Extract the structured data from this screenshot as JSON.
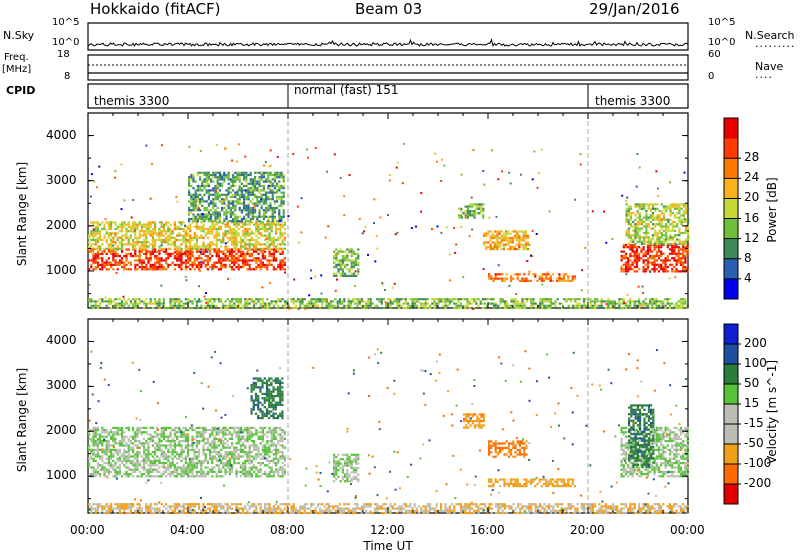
{
  "header": {
    "radar": "Hokkaido (fitACF)",
    "beam": "Beam 03",
    "date": "29/Jan/2016"
  },
  "nsky_panel": {
    "label": "N.Sky",
    "left_ticks": [
      "10^5",
      "10^0"
    ],
    "right_ticks": [
      "10^5",
      "10^0"
    ],
    "right_label": "N.Search"
  },
  "freq_panel": {
    "label_line1": "Freq.",
    "label_line2": "[MHz]",
    "left_ticks": [
      "18",
      "8"
    ],
    "right_ticks": [
      "60",
      "0"
    ],
    "right_label": "Nave"
  },
  "cpid_panel": {
    "label": "CPID",
    "segments": [
      {
        "start_hour": 0,
        "end_hour": 8,
        "name": "themis 3300"
      },
      {
        "start_hour": 8,
        "end_hour": 20,
        "name": "normal (fast) 151"
      },
      {
        "start_hour": 20,
        "end_hour": 24,
        "name": "themis 3300"
      }
    ]
  },
  "colors": {
    "power_scale": [
      "#0000ee",
      "#2a5fb0",
      "#3f8a5a",
      "#6fbf3a",
      "#c8d83a",
      "#f7b21e",
      "#ff7a00",
      "#ff3c00",
      "#e80000"
    ],
    "velocity_scale": [
      "#1020d0",
      "#1f4fa0",
      "#2c7d3c",
      "#58c23a",
      "#bdbdb5",
      "#bdbdb5",
      "#f2a01c",
      "#ff6a00",
      "#e00000"
    ],
    "ground_scatter": "#bdbdb5"
  },
  "chart_data": [
    {
      "type": "heatmap",
      "panel": "power",
      "ylabel": "Slant Range [km]",
      "xlabel": "",
      "xlim": [
        0,
        24
      ],
      "ylim": [
        180,
        4500
      ],
      "yticks": [
        "1000",
        "2000",
        "3000",
        "4000"
      ],
      "colorbar": {
        "label": "Power [dB]",
        "ticks": [
          "4",
          "8",
          "12",
          "16",
          "20",
          "24",
          "28"
        ],
        "range": [
          0,
          32
        ]
      },
      "regions": [
        {
          "t0": 0.0,
          "t1": 7.9,
          "r0": 1050,
          "r1": 1500,
          "value": 27
        },
        {
          "t0": 0.0,
          "t1": 7.9,
          "r0": 1500,
          "r1": 2100,
          "value": 17
        },
        {
          "t0": 4.0,
          "t1": 7.8,
          "r0": 2100,
          "r1": 3200,
          "value": 10
        },
        {
          "t0": 9.8,
          "t1": 10.8,
          "r0": 900,
          "r1": 1500,
          "value": 12
        },
        {
          "t0": 14.8,
          "t1": 15.8,
          "r0": 2200,
          "r1": 2500,
          "value": 12
        },
        {
          "t0": 15.8,
          "t1": 17.6,
          "r0": 1500,
          "r1": 1900,
          "value": 20
        },
        {
          "t0": 16.0,
          "t1": 19.5,
          "r0": 800,
          "r1": 950,
          "value": 24
        },
        {
          "t0": 21.3,
          "t1": 24.0,
          "r0": 1000,
          "r1": 1600,
          "value": 28
        },
        {
          "t0": 21.5,
          "t1": 24.0,
          "r0": 1600,
          "r1": 2500,
          "value": 15
        },
        {
          "t0": 0.0,
          "t1": 24.0,
          "r0": 180,
          "r1": 400,
          "value": 13
        }
      ]
    },
    {
      "type": "heatmap",
      "panel": "velocity",
      "ylabel": "Slant Range [km]",
      "xlabel": "Time UT",
      "xlim": [
        0,
        24
      ],
      "ylim": [
        180,
        4500
      ],
      "yticks": [
        "1000",
        "2000",
        "3000",
        "4000"
      ],
      "xticks": [
        "00:00",
        "04:00",
        "08:00",
        "12:00",
        "16:00",
        "20:00",
        "00:00"
      ],
      "colorbar": {
        "label": "Velocity [m s^-1]",
        "ticks": [
          "200",
          "100",
          "50",
          "15",
          "-15",
          "-50",
          "-100",
          "-200"
        ]
      },
      "regions": [
        {
          "t0": 0.0,
          "t1": 7.9,
          "r0": 1000,
          "r1": 2100,
          "value": 0
        },
        {
          "t0": 6.5,
          "t1": 7.8,
          "r0": 2300,
          "r1": 3200,
          "value": 60
        },
        {
          "t0": 9.8,
          "t1": 10.8,
          "r0": 900,
          "r1": 1500,
          "value": 0
        },
        {
          "t0": 15.0,
          "t1": 15.8,
          "r0": 2100,
          "r1": 2400,
          "value": -60
        },
        {
          "t0": 16.0,
          "t1": 17.5,
          "r0": 1450,
          "r1": 1800,
          "value": -80
        },
        {
          "t0": 16.0,
          "t1": 19.5,
          "r0": 800,
          "r1": 950,
          "value": -50
        },
        {
          "t0": 21.3,
          "t1": 24.0,
          "r0": 1000,
          "r1": 2100,
          "value": 0
        },
        {
          "t0": 21.6,
          "t1": 22.6,
          "r0": 1200,
          "r1": 2600,
          "value": 60
        },
        {
          "t0": 0.0,
          "t1": 24.0,
          "r0": 180,
          "r1": 400,
          "value": -30
        }
      ]
    }
  ]
}
